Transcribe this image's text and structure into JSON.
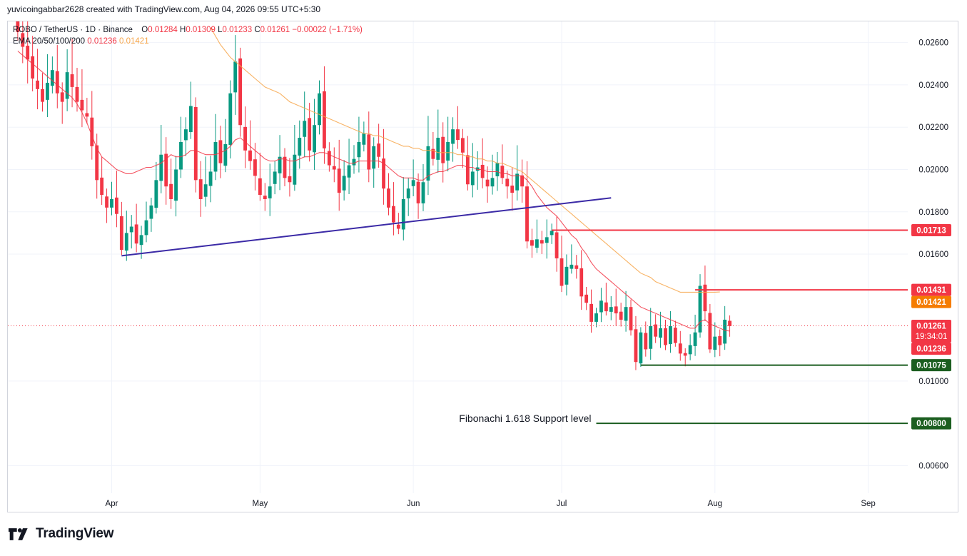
{
  "header": {
    "created_line": "yuvicoingabbar2628 created with TradingView.com, Aug 04, 2026 09:55 UTC+5:30"
  },
  "legend": {
    "symbol": "ROBO / TetherUS · 1D · Binance",
    "o_label": "O",
    "o_value": "0.01284",
    "h_label": "H",
    "h_value": "0.01309",
    "l_label": "L",
    "l_value": "0.01233",
    "c_label": "C",
    "c_value": "0.01261",
    "change": "−0.00022 (−1.71%)",
    "ema_label": "EMA 20/50/100/200",
    "ema20_value": "0.01236",
    "ema50_value": "0.01421"
  },
  "annotation": {
    "fib_text": "Fibonachi 1.618 Support level"
  },
  "brand": {
    "name": "TradingView"
  },
  "colors": {
    "up": "#26a69a",
    "up_dark": "#089981",
    "down": "#f23645",
    "ema20": "#f23645",
    "ema50": "#f7a64a",
    "trendline": "#3b2aa6",
    "support": "#1b5e20",
    "resistance": "#f23645",
    "grid": "#f0f3fa",
    "axis_text": "#131722"
  },
  "chart_data": {
    "type": "candlestick",
    "symbol": "ROBO / TetherUS",
    "interval": "1D",
    "exchange": "Binance",
    "ylim": [
      0.0047,
      0.027
    ],
    "y_ticks": [
      "0.00600",
      "0.01000",
      "0.01600",
      "0.01800",
      "0.02000",
      "0.02200",
      "0.02400",
      "0.02600"
    ],
    "x_ticks": [
      {
        "label": "Apr",
        "day": 0
      },
      {
        "label": "May",
        "day": 30
      },
      {
        "label": "Jun",
        "day": 61
      },
      {
        "label": "Jul",
        "day": 91
      },
      {
        "label": "Aug",
        "day": 122
      },
      {
        "label": "Sep",
        "day": 153
      }
    ],
    "xlim_days": [
      -21,
      161
    ],
    "closes": [
      0.0265,
      0.0258,
      0.0252,
      0.0243,
      0.0238,
      0.0232,
      0.0241,
      0.0247,
      0.0236,
      0.0232,
      0.0246,
      0.0239,
      0.0232,
      0.0228,
      0.0225,
      0.0211,
      0.0195,
      0.0188,
      0.0182,
      0.0186,
      0.0179,
      0.0162,
      0.017,
      0.0173,
      0.0165,
      0.0169,
      0.0176,
      0.0183,
      0.0195,
      0.0207,
      0.0192,
      0.0186,
      0.02,
      0.0213,
      0.0219,
      0.023,
      0.0195,
      0.0186,
      0.0193,
      0.0199,
      0.0213,
      0.0203,
      0.0212,
      0.0236,
      0.0251,
      0.0221,
      0.0209,
      0.0204,
      0.0197,
      0.0188,
      0.0186,
      0.0192,
      0.0199,
      0.0206,
      0.0196,
      0.0194,
      0.0207,
      0.0215,
      0.0223,
      0.0209,
      0.0221,
      0.0236,
      0.021,
      0.0202,
      0.02,
      0.0189,
      0.0197,
      0.0202,
      0.0205,
      0.0213,
      0.0217,
      0.02,
      0.0211,
      0.0206,
      0.0191,
      0.0182,
      0.0175,
      0.0172,
      0.0186,
      0.0191,
      0.0195,
      0.0184,
      0.0194,
      0.0211,
      0.0205,
      0.0215,
      0.0203,
      0.0213,
      0.0219,
      0.0214,
      0.0208,
      0.0193,
      0.0199,
      0.0201,
      0.0196,
      0.0192,
      0.0196,
      0.0203,
      0.0196,
      0.0192,
      0.0189,
      0.0198,
      0.0192,
      0.0166,
      0.0164,
      0.0167,
      0.0165,
      0.0168,
      0.0171,
      0.0158,
      0.0145,
      0.0154,
      0.0155,
      0.0153,
      0.014,
      0.0137,
      0.0128,
      0.0132,
      0.0138,
      0.0133,
      0.0135,
      0.0132,
      0.0129,
      0.0135,
      0.0124,
      0.0109,
      0.0123,
      0.0115,
      0.0126,
      0.0121,
      0.0125,
      0.0117,
      0.0126,
      0.0118,
      0.0113,
      0.0112,
      0.0117,
      0.0123,
      0.0145,
      0.0133,
      0.0115,
      0.0121,
      0.0117,
      0.0129,
      0.0126
    ],
    "last_close": 0.01261,
    "series": [
      {
        "name": "EMA 20",
        "values": [
          0.0256,
          0.0254,
          0.0252,
          0.025,
          0.0248,
          0.0246,
          0.0244,
          0.0242,
          0.024,
          0.0238,
          0.0236,
          0.0234,
          0.0231,
          0.0227,
          0.0222,
          0.0216,
          0.021,
          0.0206,
          0.0204,
          0.0202,
          0.02,
          0.0199,
          0.0198,
          0.0198,
          0.0199,
          0.02,
          0.0201,
          0.0201,
          0.0202,
          0.0203,
          0.0205,
          0.0207,
          0.0206,
          0.0206,
          0.0207,
          0.0209,
          0.0209,
          0.0208,
          0.0207,
          0.0207,
          0.0207,
          0.0208,
          0.0209,
          0.0211,
          0.0214,
          0.0215,
          0.0213,
          0.0211,
          0.0209,
          0.0207,
          0.0205,
          0.0204,
          0.0204,
          0.0205,
          0.0205,
          0.0204,
          0.0204,
          0.0205,
          0.0206,
          0.0206,
          0.0207,
          0.0208,
          0.0208,
          0.0207,
          0.0206,
          0.0205,
          0.0204,
          0.0203,
          0.0203,
          0.0204,
          0.0204,
          0.0204,
          0.0204,
          0.0204,
          0.0203,
          0.0201,
          0.0199,
          0.0197,
          0.0196,
          0.0196,
          0.0196,
          0.0195,
          0.0195,
          0.0197,
          0.0198,
          0.0199,
          0.0199,
          0.02,
          0.0201,
          0.0202,
          0.0202,
          0.0201,
          0.0201,
          0.02,
          0.02,
          0.0199,
          0.0199,
          0.0199,
          0.0198,
          0.0198,
          0.0197,
          0.0197,
          0.0197,
          0.0195,
          0.0192,
          0.0188,
          0.0185,
          0.0182,
          0.018,
          0.0178,
          0.0175,
          0.0172,
          0.0169,
          0.0167,
          0.0163,
          0.016,
          0.0156,
          0.0153,
          0.0151,
          0.0149,
          0.0147,
          0.0145,
          0.0143,
          0.0141,
          0.0139,
          0.0137,
          0.0135,
          0.0134,
          0.0133,
          0.0132,
          0.0131,
          0.013,
          0.0129,
          0.0128,
          0.0127,
          0.0126,
          0.0125,
          0.0125,
          0.0128,
          0.0129,
          0.0127,
          0.0126,
          0.0125,
          0.0124,
          0.01236
        ]
      },
      {
        "name": "EMA 50",
        "values": [
          null,
          null,
          null,
          null,
          null,
          null,
          null,
          null,
          null,
          null,
          null,
          null,
          null,
          null,
          null,
          null,
          null,
          null,
          null,
          null,
          null,
          null,
          null,
          null,
          null,
          null,
          null,
          null,
          null,
          null,
          null,
          null,
          null,
          null,
          null,
          null,
          null,
          null,
          null,
          0.0267,
          0.0263,
          0.0259,
          0.0256,
          0.0253,
          0.0251,
          0.0249,
          0.0247,
          0.0245,
          0.0243,
          0.0241,
          0.0239,
          0.0238,
          0.0237,
          0.0236,
          0.0234,
          0.0232,
          0.0231,
          0.023,
          0.0229,
          0.0228,
          0.0227,
          0.0226,
          0.0225,
          0.0224,
          0.0223,
          0.0222,
          0.0221,
          0.022,
          0.0219,
          0.0218,
          0.0217,
          0.0217,
          0.0216,
          0.0216,
          0.0215,
          0.0214,
          0.0213,
          0.0212,
          0.0211,
          0.0211,
          0.021,
          0.021,
          0.0209,
          0.0209,
          0.0209,
          0.0208,
          0.0208,
          0.0208,
          0.0208,
          0.0207,
          0.0207,
          0.0206,
          0.0206,
          0.0205,
          0.0205,
          0.0204,
          0.0204,
          0.0203,
          0.0203,
          0.0202,
          0.0201,
          0.02,
          0.0199,
          0.0197,
          0.0195,
          0.0193,
          0.0191,
          0.0189,
          0.0187,
          0.0185,
          0.0183,
          0.0181,
          0.0179,
          0.0177,
          0.0175,
          0.0173,
          0.0171,
          0.0169,
          0.0167,
          0.0165,
          0.0163,
          0.0161,
          0.0159,
          0.0157,
          0.0155,
          0.0153,
          0.0151,
          0.015,
          0.0149,
          0.0147,
          0.0146,
          0.0145,
          0.0144,
          0.0143,
          0.0142,
          0.0142,
          0.0142,
          0.0142,
          0.0142,
          0.0142,
          0.0142,
          0.0142,
          0.01421
        ]
      }
    ],
    "trendline": {
      "from_day": 2,
      "from_price": 0.01592,
      "to_day": 101,
      "to_price": 0.01866
    },
    "levels": [
      {
        "price": 0.01713,
        "label": "0.01713",
        "kind": "resistance",
        "from_day": 89
      },
      {
        "price": 0.01431,
        "label": "0.01431",
        "kind": "resistance",
        "from_day": 118
      },
      {
        "price": 0.01075,
        "label": "0.01075",
        "kind": "support",
        "from_day": 107
      },
      {
        "price": 0.008,
        "label": "0.00800",
        "kind": "fib-support",
        "from_day": 98
      }
    ],
    "price_tags": [
      {
        "price": 0.01431,
        "label": "0.01431",
        "color": "#f23645"
      },
      {
        "price": 0.01421,
        "label": "0.01421",
        "color": "#f57c00"
      },
      {
        "price": 0.01261,
        "label": "0.01261",
        "sub": "19:34:01",
        "color": "#f23645"
      },
      {
        "price": 0.01236,
        "label": "0.01236",
        "color": "#f23645"
      },
      {
        "price": 0.01075,
        "label": "0.01075",
        "color": "#1b5e20"
      },
      {
        "price": 0.008,
        "label": "0.00800",
        "color": "#1b5e20"
      },
      {
        "price": 0.01713,
        "label": "0.01713",
        "color": "#f23645"
      }
    ]
  }
}
